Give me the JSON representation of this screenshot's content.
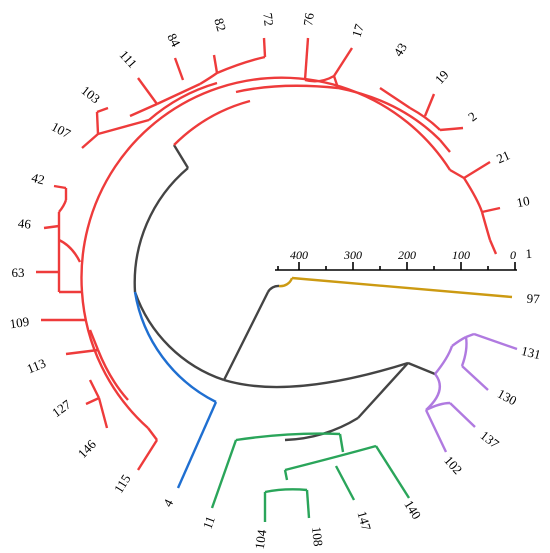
{
  "colors": {
    "red": "#ee3b3b",
    "blue": "#1f6fd1",
    "green": "#2aa55a",
    "purple": "#b07ae0",
    "gold": "#cc9a12",
    "gray": "#444444"
  },
  "scale": {
    "ticks": [
      "400",
      "300",
      "200",
      "100",
      "0"
    ]
  },
  "leaves": [
    {
      "id": "1",
      "group": "red"
    },
    {
      "id": "10",
      "group": "red"
    },
    {
      "id": "21",
      "group": "red"
    },
    {
      "id": "2",
      "group": "red"
    },
    {
      "id": "19",
      "group": "red"
    },
    {
      "id": "43",
      "group": "red"
    },
    {
      "id": "17",
      "group": "red"
    },
    {
      "id": "76",
      "group": "red"
    },
    {
      "id": "72",
      "group": "red"
    },
    {
      "id": "82",
      "group": "red"
    },
    {
      "id": "84",
      "group": "red"
    },
    {
      "id": "111",
      "group": "red"
    },
    {
      "id": "103",
      "group": "red"
    },
    {
      "id": "107",
      "group": "red"
    },
    {
      "id": "42",
      "group": "red"
    },
    {
      "id": "46",
      "group": "red"
    },
    {
      "id": "63",
      "group": "red"
    },
    {
      "id": "109",
      "group": "red"
    },
    {
      "id": "113",
      "group": "red"
    },
    {
      "id": "127",
      "group": "red"
    },
    {
      "id": "146",
      "group": "red"
    },
    {
      "id": "115",
      "group": "red"
    },
    {
      "id": "4",
      "group": "blue"
    },
    {
      "id": "11",
      "group": "green"
    },
    {
      "id": "104",
      "group": "green"
    },
    {
      "id": "108",
      "group": "green"
    },
    {
      "id": "147",
      "group": "green"
    },
    {
      "id": "140",
      "group": "green"
    },
    {
      "id": "102",
      "group": "purple"
    },
    {
      "id": "137",
      "group": "purple"
    },
    {
      "id": "130",
      "group": "purple"
    },
    {
      "id": "131",
      "group": "purple"
    },
    {
      "id": "97",
      "group": "gold"
    }
  ]
}
